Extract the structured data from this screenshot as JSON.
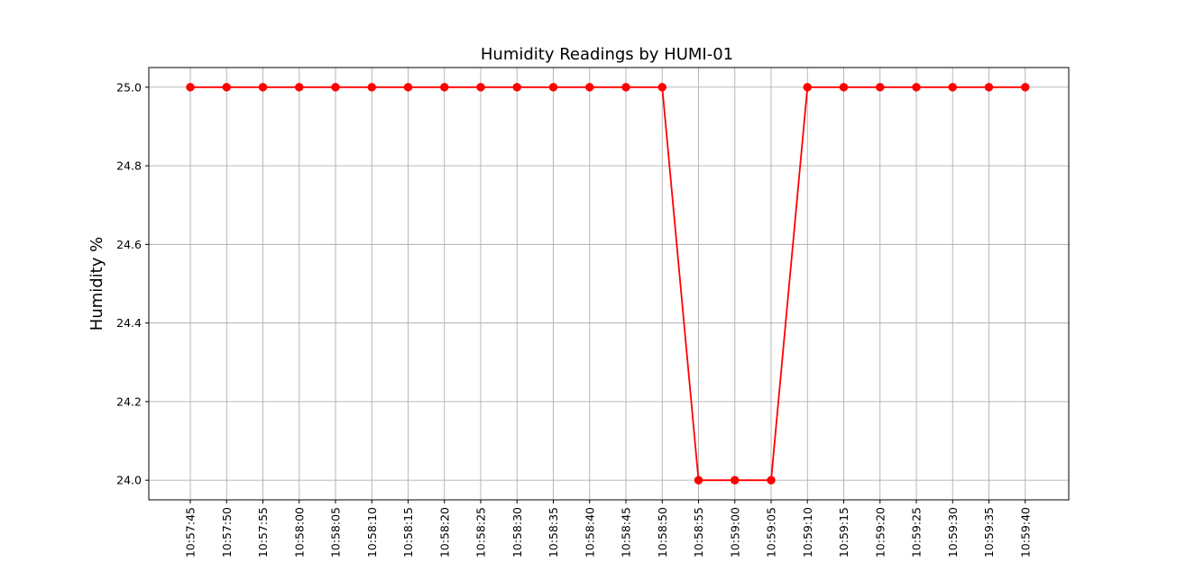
{
  "chart_data": {
    "type": "line",
    "title": "Humidity Readings by HUMI-01",
    "xlabel": "",
    "ylabel": "Humidity %",
    "x": [
      "10:57:45",
      "10:57:50",
      "10:57:55",
      "10:58:00",
      "10:58:05",
      "10:58:10",
      "10:58:15",
      "10:58:20",
      "10:58:25",
      "10:58:30",
      "10:58:35",
      "10:58:40",
      "10:58:45",
      "10:58:50",
      "10:58:55",
      "10:59:00",
      "10:59:05",
      "10:59:10",
      "10:59:15",
      "10:59:20",
      "10:59:25",
      "10:59:30",
      "10:59:35",
      "10:59:40"
    ],
    "series": [
      {
        "values": [
          25.0,
          25.0,
          25.0,
          25.0,
          25.0,
          25.0,
          25.0,
          25.0,
          25.0,
          25.0,
          25.0,
          25.0,
          25.0,
          25.0,
          24.0,
          24.0,
          24.0,
          25.0,
          25.0,
          25.0,
          25.0,
          25.0,
          25.0,
          25.0
        ],
        "color": "#ff0000",
        "marker": "circle"
      }
    ],
    "ylim": [
      23.95,
      25.05
    ],
    "yticks": [
      "24.0",
      "24.2",
      "24.4",
      "24.6",
      "24.8",
      "25.0"
    ],
    "grid": true,
    "colors": {
      "grid": "#b0b0b0",
      "axes": "#000000",
      "line": "#ff0000"
    }
  }
}
